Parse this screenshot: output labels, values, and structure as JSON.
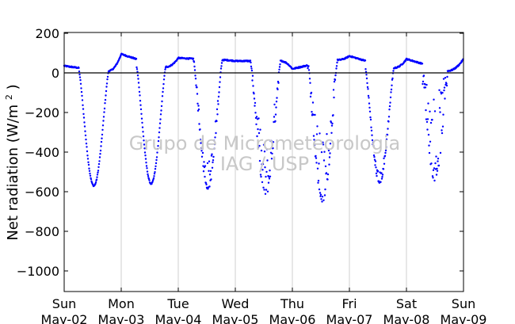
{
  "chart_data": {
    "type": "scatter",
    "ylabel": "Net radiation (W/m² )",
    "ylim": [
      -1100,
      210
    ],
    "yticks": [
      200,
      0,
      -200,
      -400,
      -600,
      -800,
      -1000
    ],
    "ytick_labels": [
      "200",
      "0",
      "−200",
      "−400",
      "−600",
      "−800",
      "−1000"
    ],
    "xlim": [
      0,
      7
    ],
    "xticks": [
      {
        "x": 0,
        "day": "Sun",
        "date": "May-02"
      },
      {
        "x": 1,
        "day": "Mon",
        "date": "May-03"
      },
      {
        "x": 2,
        "day": "Tue",
        "date": "May-04"
      },
      {
        "x": 3,
        "day": "Wed",
        "date": "May-05"
      },
      {
        "x": 4,
        "day": "Thu",
        "date": "May-06"
      },
      {
        "x": 5,
        "day": "Fri",
        "date": "May-07"
      },
      {
        "x": 6,
        "day": "Sat",
        "date": "May-08"
      },
      {
        "x": 7,
        "day": "Sun",
        "date": "May-09"
      }
    ],
    "grid": {
      "vertical": true,
      "horizontal": false
    },
    "zero_line": true,
    "series_color": "#0000ff",
    "watermark": [
      "Grupo de Micrometeorologia",
      "IAG / USP"
    ],
    "days": [
      {
        "start": 0,
        "night_level": 35,
        "end_level": 10,
        "sunrise": 0.26,
        "sunset": 0.78,
        "peak": -570,
        "noise": 0
      },
      {
        "start": 1,
        "night_level": 95,
        "end_level": 30,
        "sunrise": 1.27,
        "sunset": 1.78,
        "peak": -560,
        "noise": 0
      },
      {
        "start": 2,
        "night_level": 75,
        "end_level": 65,
        "sunrise": 2.27,
        "sunset": 2.77,
        "peak": -570,
        "noise": 0.25
      },
      {
        "start": 3,
        "night_level": 60,
        "end_level": 60,
        "sunrise": 3.27,
        "sunset": 3.79,
        "peak": -590,
        "noise": 0.45
      },
      {
        "start": 4,
        "night_level": 20,
        "end_level": 65,
        "sunrise": 4.27,
        "sunset": 4.79,
        "peak": -620,
        "noise": 0.55
      },
      {
        "start": 5,
        "night_level": 85,
        "end_level": 25,
        "sunrise": 5.28,
        "sunset": 5.78,
        "peak": -550,
        "noise": 0.1
      },
      {
        "start": 6,
        "night_level": 70,
        "end_level": 10,
        "sunrise": 6.28,
        "sunset": 6.72,
        "peak": -480,
        "noise": 0.9
      }
    ]
  }
}
